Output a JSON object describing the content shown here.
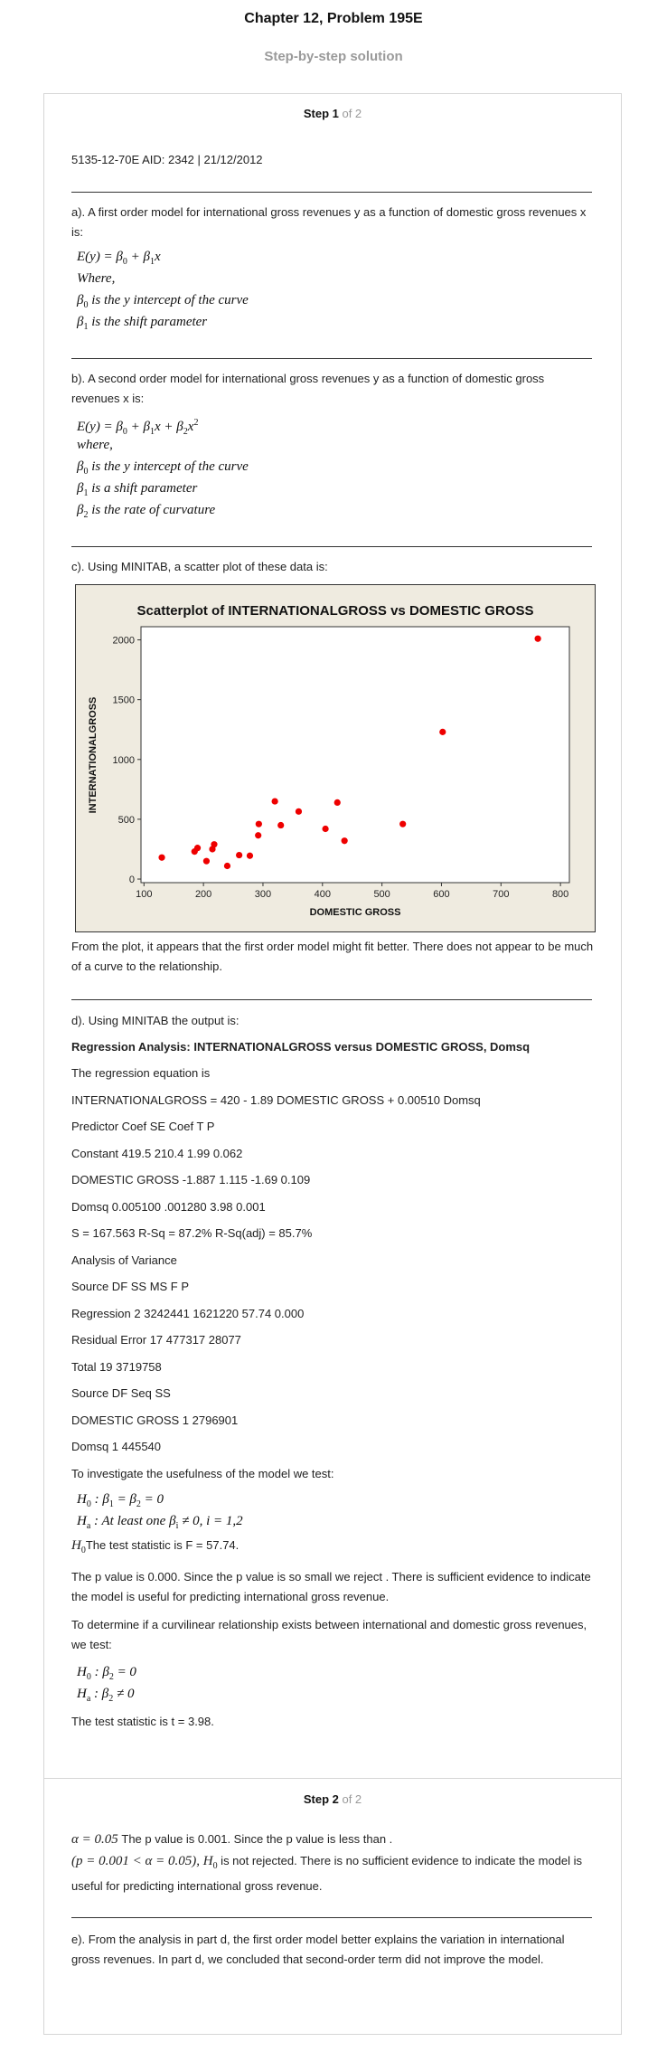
{
  "header": {
    "title": "Chapter 12, Problem 195E",
    "subtitle": "Step-by-step solution"
  },
  "step1": {
    "label_bold": "Step 1",
    "label_of": " of 2",
    "aid": "5135-12-70E AID: 2342 | 21/12/2012",
    "part_a": "a). A first order model for international gross revenues y as a function of domestic gross revenues x is:",
    "part_a_where": "Where,",
    "part_a_b0": "is the y intercept of the curve",
    "part_a_b1": "is the shift parameter",
    "part_b": "b). A second order model for international gross revenues y as a function of domestic gross revenues x is:",
    "part_b_where": "where,",
    "part_b_b0": "is the y intercept of the curve",
    "part_b_b1": "is a shift parameter",
    "part_b_b2": "is the rate of curvature",
    "part_c": "c). Using MINITAB, a scatter plot of these data is:",
    "part_c_after": "From the plot, it appears that the first order model might fit better. There does not appear to be much of a curve to the relationship.",
    "part_d": "d). Using MINITAB the output is:",
    "reg_title": "Regression Analysis: INTERNATIONALGROSS versus DOMESTIC GROSS, Domsq",
    "output_lines": [
      "The regression equation is",
      "INTERNATIONALGROSS = 420 - 1.89 DOMESTIC GROSS + 0.00510 Domsq",
      "Predictor Coef SE Coef T P",
      "Constant 419.5 210.4 1.99 0.062",
      "DOMESTIC GROSS -1.887 1.115 -1.69 0.109",
      "Domsq 0.005100 .001280 3.98 0.001",
      "S = 167.563 R-Sq = 87.2% R-Sq(adj) = 85.7%",
      "Analysis of Variance",
      "Source DF SS MS F P",
      "Regression 2 3242441 1621220 57.74 0.000",
      "Residual Error 17 477317 28077",
      "Total 19 3719758",
      "Source DF Seq SS",
      "DOMESTIC GROSS 1 2796901",
      "Domsq 1 445540"
    ],
    "usefulness_intro": "To investigate the usefulness of the model we test:",
    "h0_test_stat": "The test statistic is F = 57.74.",
    "pvalue_text": "The p value is 0.000. Since the p value is so small we reject . There is sufficient evidence to indicate the model is useful for predicting international gross revenue.",
    "curvilinear_intro": "To determine if a curvilinear relationship exists between international and domestic gross revenues, we test:",
    "t_stat": "The test statistic is t = 3.98."
  },
  "step2": {
    "label_bold": "Step 2",
    "label_of": " of 2",
    "line1_text": "The p value is 0.001. Since the p value is less than .",
    "line2_text": " is not rejected. There is no sufficient evidence to indicate the model is useful for predicting international gross revenue.",
    "part_e": "e). From the analysis in part d, the first order model better explains the variation in international gross revenues. In part d, we concluded that second-order term did not improve the model."
  },
  "chart_data": {
    "type": "scatter",
    "title": "Scatterplot of INTERNATIONALGROSS vs DOMESTIC GROSS",
    "xlabel": "DOMESTIC GROSS",
    "ylabel": "INTERNATIONALGROSS",
    "xlim": [
      95,
      815
    ],
    "ylim": [
      -30,
      2110
    ],
    "xticks": [
      100,
      200,
      300,
      400,
      500,
      600,
      700,
      800
    ],
    "yticks": [
      0,
      500,
      1000,
      1500,
      2000
    ],
    "grid": false,
    "marker_color": "#ee0000",
    "background": "#efebe0",
    "points": [
      {
        "x": 130,
        "y": 180
      },
      {
        "x": 185,
        "y": 230
      },
      {
        "x": 190,
        "y": 260
      },
      {
        "x": 205,
        "y": 150
      },
      {
        "x": 215,
        "y": 250
      },
      {
        "x": 218,
        "y": 290
      },
      {
        "x": 240,
        "y": 110
      },
      {
        "x": 260,
        "y": 200
      },
      {
        "x": 278,
        "y": 195
      },
      {
        "x": 292,
        "y": 365
      },
      {
        "x": 293,
        "y": 460
      },
      {
        "x": 320,
        "y": 650
      },
      {
        "x": 330,
        "y": 450
      },
      {
        "x": 360,
        "y": 565
      },
      {
        "x": 405,
        "y": 420
      },
      {
        "x": 425,
        "y": 640
      },
      {
        "x": 437,
        "y": 320
      },
      {
        "x": 535,
        "y": 460
      },
      {
        "x": 602,
        "y": 1230
      },
      {
        "x": 762,
        "y": 2010
      }
    ]
  }
}
